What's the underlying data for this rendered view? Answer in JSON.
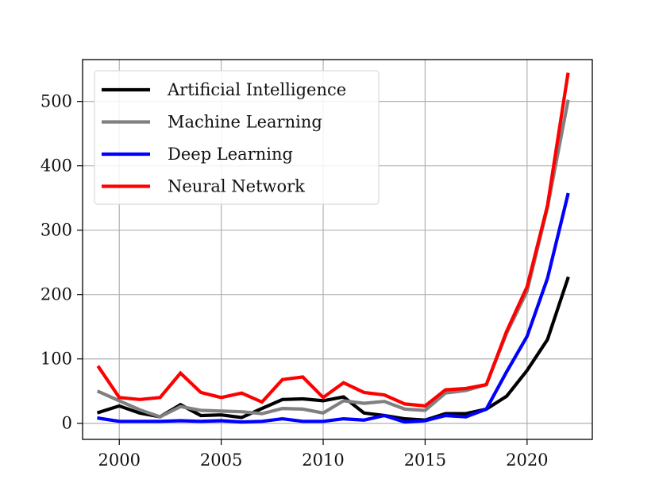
{
  "chart_data": {
    "type": "line",
    "title": "",
    "xlabel": "",
    "ylabel": "",
    "xlim": [
      1998.2,
      2023.2
    ],
    "ylim": [
      -25,
      565
    ],
    "xticks": [
      2000,
      2005,
      2010,
      2015,
      2020
    ],
    "yticks": [
      0,
      100,
      200,
      300,
      400,
      500
    ],
    "grid": true,
    "legend_position": "top-left",
    "x": [
      1999,
      2000,
      2001,
      2002,
      2003,
      2004,
      2005,
      2006,
      2007,
      2008,
      2009,
      2010,
      2011,
      2012,
      2013,
      2014,
      2015,
      2016,
      2017,
      2018,
      2019,
      2020,
      2021,
      2022
    ],
    "series": [
      {
        "name": "Artificial Intelligence",
        "color": "#000000",
        "values": [
          17,
          27,
          16,
          10,
          29,
          12,
          13,
          9,
          23,
          37,
          38,
          35,
          41,
          16,
          12,
          7,
          5,
          15,
          15,
          22,
          42,
          82,
          130,
          225
        ]
      },
      {
        "name": "Machine Learning",
        "color": "#808080",
        "values": [
          49,
          35,
          21,
          10,
          26,
          20,
          19,
          18,
          15,
          23,
          22,
          16,
          35,
          31,
          34,
          22,
          20,
          47,
          51,
          60,
          140,
          205,
          335,
          500
        ]
      },
      {
        "name": "Deep Learning",
        "color": "#0000ff",
        "values": [
          8,
          3,
          3,
          3,
          4,
          3,
          4,
          2,
          3,
          7,
          3,
          3,
          7,
          5,
          12,
          2,
          4,
          12,
          10,
          22,
          80,
          135,
          225,
          355
        ]
      },
      {
        "name": "Neural Network",
        "color": "#ff0000",
        "values": [
          87,
          40,
          37,
          40,
          78,
          48,
          40,
          47,
          33,
          68,
          72,
          40,
          63,
          48,
          44,
          30,
          27,
          52,
          54,
          60,
          143,
          212,
          338,
          542
        ]
      }
    ]
  }
}
